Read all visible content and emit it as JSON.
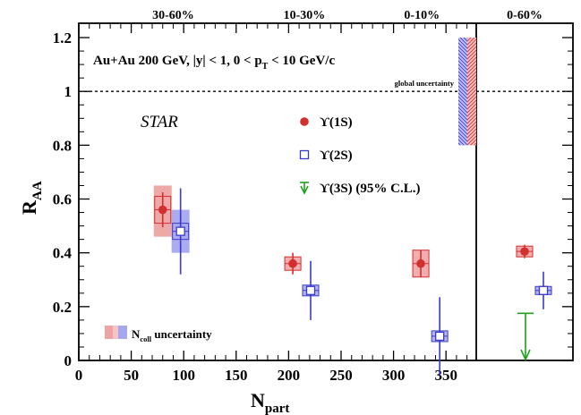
{
  "chart_data": {
    "type": "scatter",
    "experiment": "STAR",
    "collision_info": {
      "main": "Au+Au 200 GeV, |y| < 1, 0 < p",
      "pt_sub": "T",
      "tail": " < 10 GeV/c"
    },
    "global_uncertainty_label": "global uncertainty",
    "ncoll_label": {
      "main": "N",
      "sub": "coll",
      "tail": " uncertainty"
    },
    "xlabel": {
      "main": "N",
      "sub": "part"
    },
    "ylabel": {
      "main": "R",
      "sub": "AA"
    },
    "xlim": [
      0,
      380
    ],
    "ylim": [
      0,
      1.25
    ],
    "x_ticks": [
      "0",
      "50",
      "100",
      "150",
      "200",
      "250",
      "300",
      "350"
    ],
    "y_ticks": [
      "0",
      "0.2",
      "0.4",
      "0.6",
      "0.8",
      "1",
      "1.2"
    ],
    "centrality_labels": [
      {
        "text": "30-60%",
        "x": 90
      },
      {
        "text": "10-30%",
        "x": 215
      },
      {
        "text": "0-10%",
        "x": 327
      }
    ],
    "integrated_label": "0-60%",
    "reference_line": 1.0,
    "global_uncertainty": {
      "low": 0.8,
      "high": 1.2
    },
    "series": [
      {
        "name": "ϒ(1S)",
        "marker": "filled-circle",
        "color": "#d32f2f",
        "points": [
          {
            "x": 80,
            "y": 0.56,
            "err": 0.065,
            "sys": 0.05,
            "ncoll_low": 0.46,
            "ncoll_high": 0.65
          },
          {
            "x": 204,
            "y": 0.36,
            "err": 0.04,
            "sys": 0.025
          },
          {
            "x": 326,
            "y": 0.36,
            "err": 0.05,
            "sys": 0.05
          }
        ],
        "integrated": {
          "y": 0.405,
          "err": 0.025,
          "sys": 0.02
        }
      },
      {
        "name": "ϒ(2S)",
        "marker": "open-square",
        "color": "#3a3acc",
        "points": [
          {
            "x": 97,
            "y": 0.48,
            "err": 0.16,
            "sys": 0.03,
            "ncoll_low": 0.4,
            "ncoll_high": 0.56
          },
          {
            "x": 221,
            "y": 0.26,
            "err": 0.11,
            "sys": 0.02
          },
          {
            "x": 344,
            "y": 0.09,
            "err": 0.145,
            "sys": 0.02
          }
        ],
        "integrated": {
          "y": 0.26,
          "err": 0.07,
          "sys": 0.015
        }
      },
      {
        "name": "ϒ(3S) (95% C.L.)",
        "marker": "upper-limit-arrow",
        "color": "#1fa01f",
        "points": [],
        "integrated": {
          "y": 0.175
        }
      }
    ]
  }
}
